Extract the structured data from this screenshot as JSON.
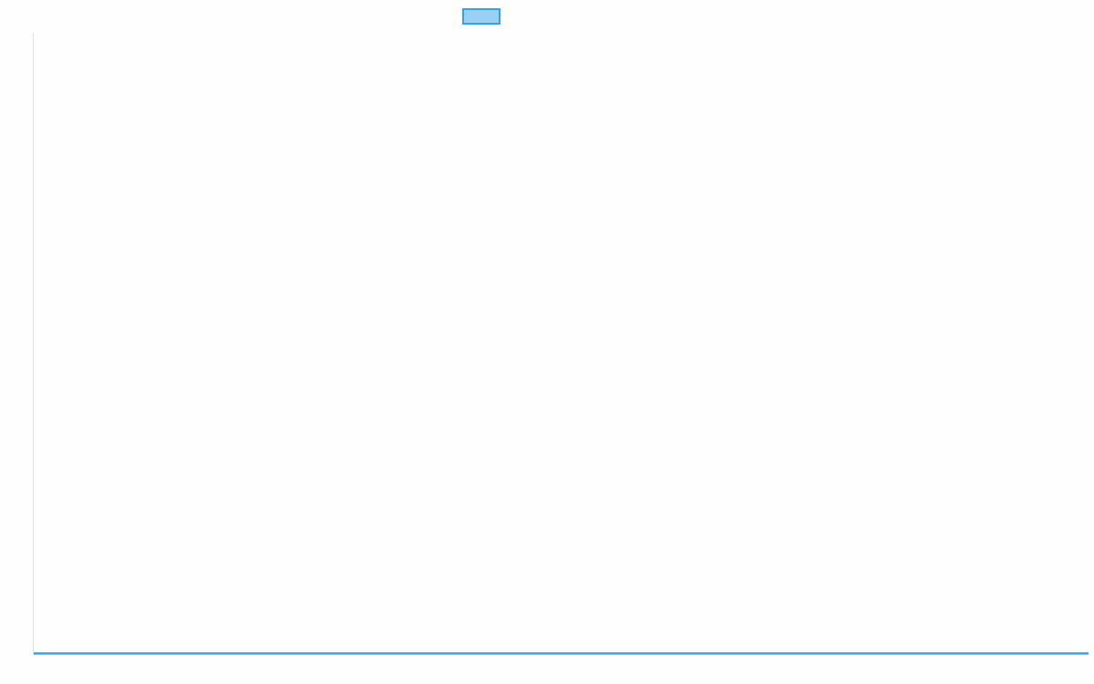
{
  "chart_data": {
    "type": "line",
    "title": "",
    "xlabel": "",
    "ylabel": "",
    "legend": {
      "position": "top",
      "entries": [
        {
          "label": "",
          "fill": "#9ad0f5",
          "stroke": "#36a2eb"
        }
      ]
    },
    "series": [
      {
        "color": "#36a2eb",
        "values": []
      }
    ],
    "grid": false,
    "axis_color": "#e0e0e0"
  }
}
